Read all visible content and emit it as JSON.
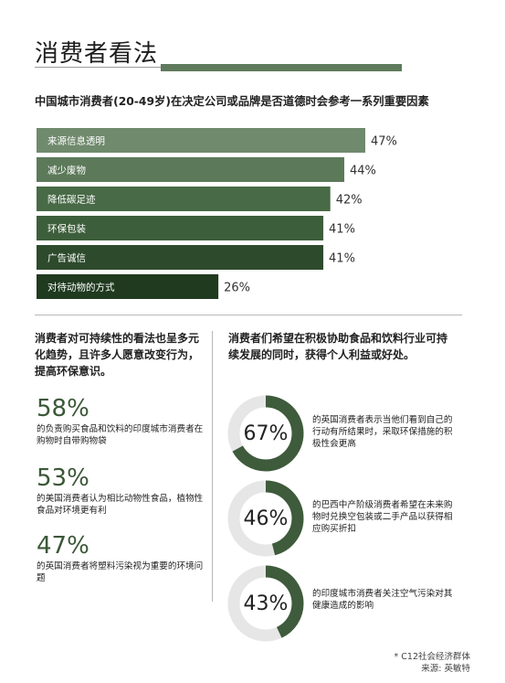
{
  "page": {
    "title": "消费者看法",
    "chart_heading": "中国城市消费者(20-49岁)在决定公司或品牌是否道德时会参考一系列重要因素"
  },
  "chart_data": {
    "type": "bar",
    "orientation": "horizontal",
    "title": "中国城市消费者(20-49岁)在决定公司或品牌是否道德时会参考一系列重要因素",
    "categories": [
      "来源信息透明",
      "减少废物",
      "降低碳足迹",
      "环保包装",
      "广告诚信",
      "对待动物的方式"
    ],
    "values": [
      47,
      44,
      42,
      41,
      41,
      26
    ],
    "value_labels": [
      "47%",
      "44%",
      "42%",
      "41%",
      "41%",
      "26%"
    ],
    "bar_colors": [
      "#6f8a6c",
      "#5c7a5a",
      "#486a46",
      "#3d5e3b",
      "#2d4b2c",
      "#1f3a1f"
    ],
    "xlim": [
      0,
      47
    ],
    "grid": false
  },
  "left_column": {
    "heading": "消费者对可持续性的看法也呈多元化趋势，且许多人愿意改变行为，提高环保意识。",
    "stats": [
      {
        "value": "58%",
        "desc": "的负责购买食品和饮料的印度城市消费者在购物时自带购物袋"
      },
      {
        "value": "53%",
        "desc": "的美国消费者认为相比动物性食品，植物性食品对环境更有利"
      },
      {
        "value": "47%",
        "desc": "的英国消费者将塑料污染视为重要的环境问题"
      }
    ]
  },
  "right_column": {
    "heading": "消费者们希望在积极协助食品和饮料行业可持续发展的同时，获得个人利益或好处。",
    "donuts": [
      {
        "value": 67,
        "label": "67%",
        "desc": "的英国消费者表示当他们看到自己的行动有所结果时，采取环保措施的积极性会更高"
      },
      {
        "value": 46,
        "label": "46%",
        "desc": "的巴西中产阶级消费者希望在未来购物时兑换空包装或二手产品以获得相应购买折扣"
      },
      {
        "value": 43,
        "label": "43%",
        "desc": "的印度城市消费者关注空气污染对其健康造成的影响"
      }
    ],
    "ring_color": "#3e5b3b",
    "track_color": "#e6e6e6"
  },
  "footnote": {
    "line1": "* C12社会经济群体",
    "line2": "来源: 英敏特"
  }
}
